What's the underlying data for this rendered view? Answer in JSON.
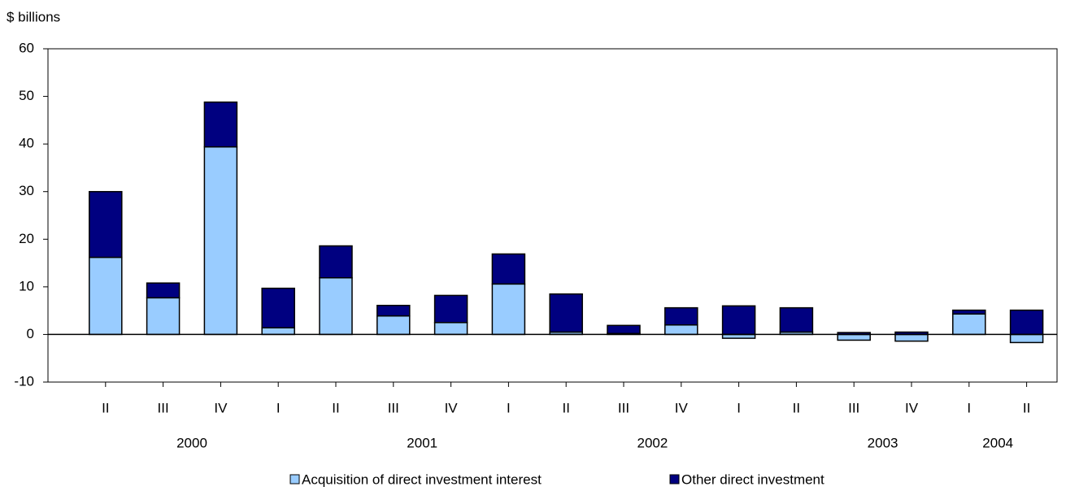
{
  "chart_data": {
    "type": "stacked_bar",
    "y_axis_label": "$ billions",
    "categories": [
      "II",
      "III",
      "IV",
      "I",
      "II",
      "III",
      "IV",
      "I",
      "II",
      "III",
      "IV",
      "I",
      "II",
      "III",
      "IV",
      "I",
      "II"
    ],
    "groups": [
      {
        "label": "2000",
        "count": 3
      },
      {
        "label": "2001",
        "count": 4
      },
      {
        "label": "2002",
        "count": 4
      },
      {
        "label": "2003",
        "count": 4
      },
      {
        "label": "2004",
        "count": 2
      }
    ],
    "series": [
      {
        "name": "Acquisition of direct investment interest",
        "color": "#99ccff",
        "values": [
          16.2,
          7.7,
          39.4,
          1.4,
          11.9,
          3.9,
          2.5,
          10.6,
          0.5,
          0.2,
          2.0,
          -0.8,
          0.5,
          -1.2,
          -1.4,
          4.3,
          -1.7
        ]
      },
      {
        "name": "Other direct investment",
        "color": "#000080",
        "values": [
          13.8,
          3.1,
          9.4,
          8.3,
          6.7,
          2.2,
          5.7,
          6.3,
          8.0,
          1.7,
          3.6,
          6.0,
          5.1,
          0.4,
          0.5,
          0.8,
          5.1
        ]
      }
    ],
    "ylim": [
      -10,
      60
    ],
    "yticks": [
      -10,
      0,
      10,
      20,
      30,
      40,
      50,
      60
    ],
    "legend": "bottom"
  }
}
